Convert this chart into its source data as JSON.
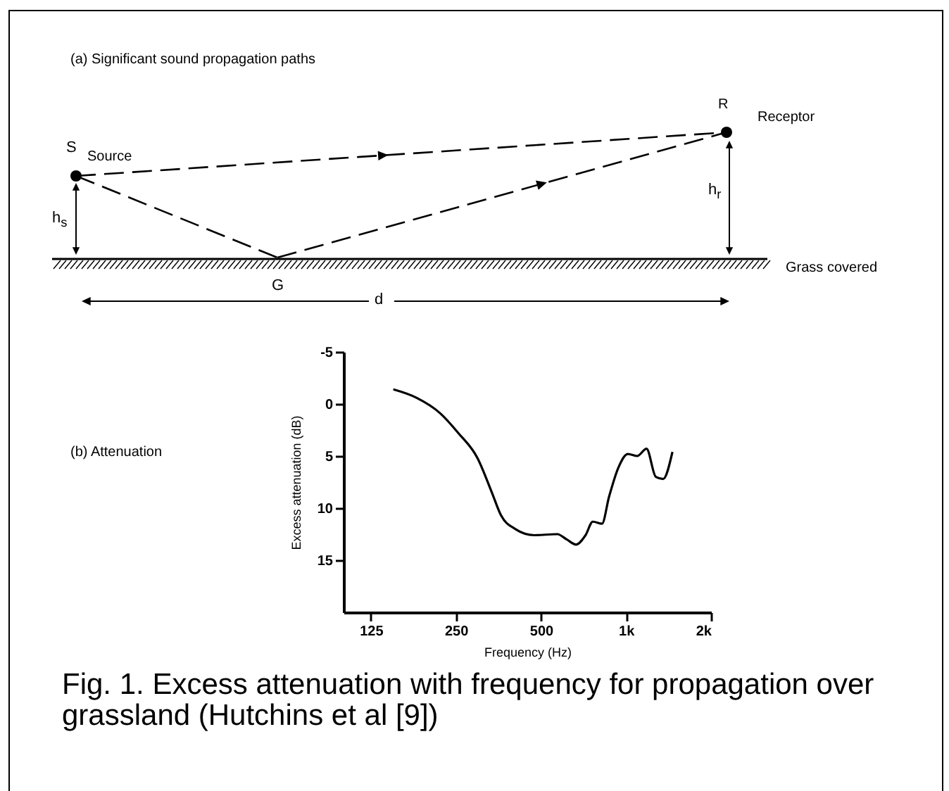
{
  "chart_data": {
    "type": "line",
    "xlabel": "Frequency (Hz)",
    "ylabel": "Excess attenuation (dB)",
    "x": [
      150,
      181,
      220,
      255,
      298,
      335,
      361,
      405,
      473,
      571,
      616,
      665,
      719,
      763,
      822,
      871,
      940,
      1015,
      1096,
      1182,
      1275,
      1353,
      1460
    ],
    "series": [
      {
        "color": "#000000",
        "values": [
          -1.4,
          -0.6,
          0.9,
          2.8,
          5.2,
          8.5,
          10.7,
          12.0,
          12.6,
          12.5,
          13.0,
          13.5,
          12.6,
          11.3,
          11.5,
          8.9,
          6.1,
          4.8,
          5.0,
          4.3,
          7.0,
          7.2,
          4.6
        ]
      }
    ],
    "log": "x",
    "xlim": [
      100,
      2000
    ],
    "xticks": [
      125,
      250,
      500,
      {
        "value": 1000,
        "label": "1k"
      },
      {
        "value": 2000,
        "label": "2k"
      }
    ],
    "ylim": [
      20,
      -5
    ],
    "yticks": [
      -5,
      0,
      5,
      10,
      15
    ],
    "grid": false,
    "marker": "none",
    "line_style": "solid",
    "annotations": [
      "(a) Significant sound propagation paths",
      "S",
      "Source",
      "R",
      "Receptor",
      "h$_{s}$",
      "h$_{r}$",
      "Grass covered",
      "G",
      "d",
      "(b) Attenuation",
      "Fig. 1. Excess attenuation with frequency for propagation over grassland (Hutchins et al [9])"
    ]
  }
}
